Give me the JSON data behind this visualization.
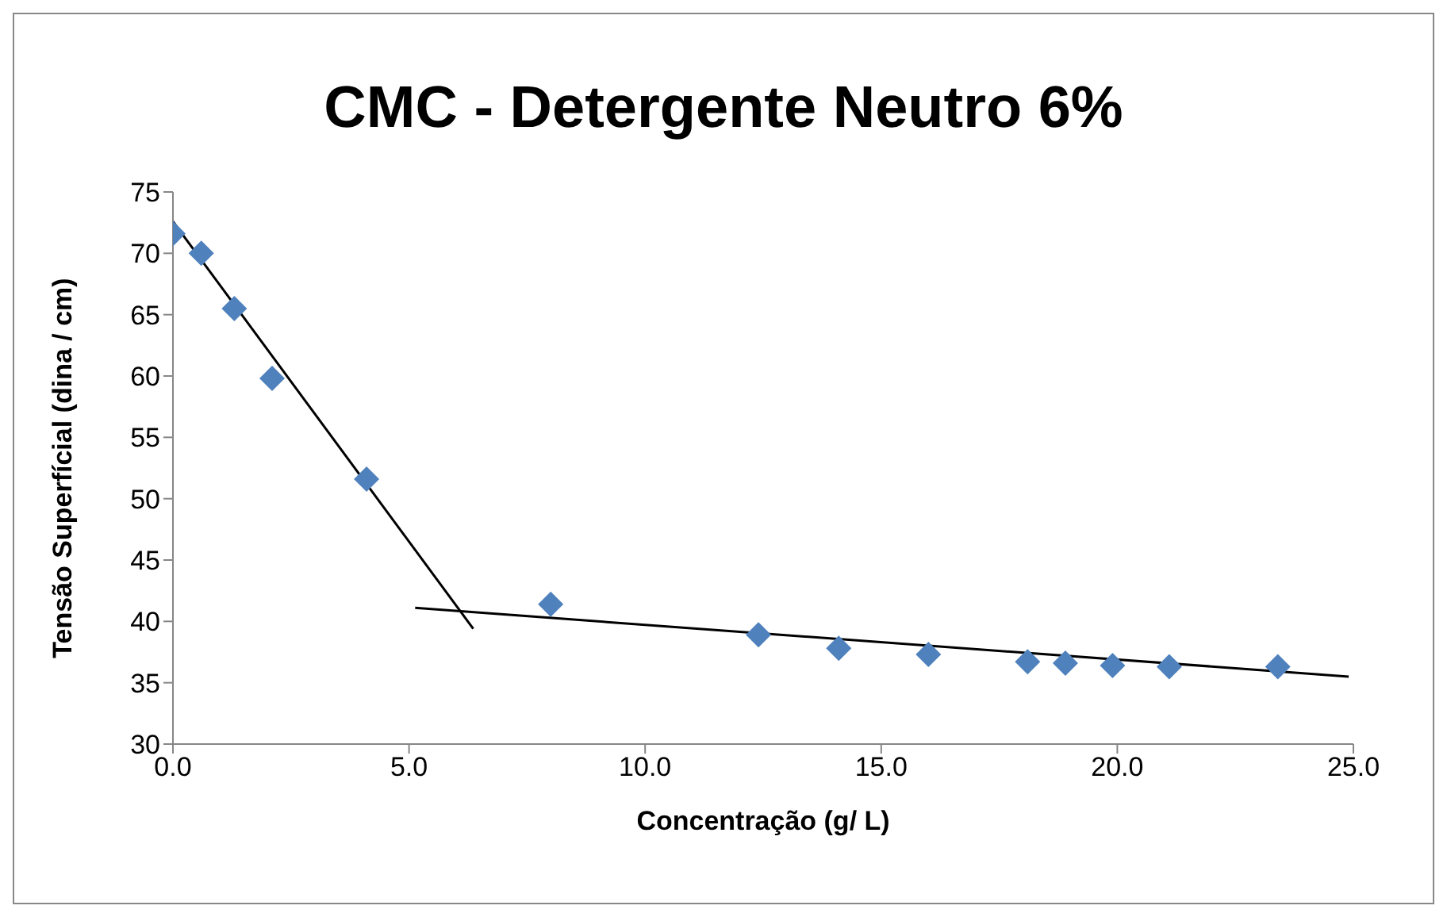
{
  "chart_data": {
    "type": "scatter",
    "title": "CMC - Detergente Neutro 6%",
    "xlabel": "Concentração (g/ L)",
    "ylabel": "Tensão Superfícial (dina / cm)",
    "xlim": [
      0,
      25
    ],
    "xticks": [
      {
        "value": 0,
        "label": "0.0"
      },
      {
        "value": 5,
        "label": "5.0"
      },
      {
        "value": 10,
        "label": "10.0"
      },
      {
        "value": 15,
        "label": "15.0"
      },
      {
        "value": 20,
        "label": "20.0"
      },
      {
        "value": 25,
        "label": "25.0"
      }
    ],
    "ylim": [
      30,
      75
    ],
    "yticks": [
      30,
      35,
      40,
      45,
      50,
      55,
      60,
      65,
      70,
      75
    ],
    "grid": false,
    "legend": false,
    "series": [
      {
        "marker": "diamond",
        "color": "#4f81bd",
        "x": [
          0,
          0.6,
          1.3,
          2.1,
          4.1,
          8.0,
          12.4,
          14.1,
          16.0,
          18.1,
          18.9,
          19.9,
          21.1,
          23.4
        ],
        "values": [
          71.6,
          70.0,
          65.5,
          59.8,
          51.6,
          41.4,
          38.9,
          37.8,
          37.3,
          36.7,
          36.6,
          36.4,
          36.3,
          36.3
        ]
      },
      {
        "type": "line",
        "marker": "none",
        "color": "#000000",
        "x": [
          0,
          6.36
        ],
        "values": [
          72.6,
          39.4
        ]
      },
      {
        "type": "line",
        "marker": "none",
        "color": "#000000",
        "x": [
          5.13,
          24.9
        ],
        "values": [
          41.1,
          35.5
        ]
      }
    ]
  }
}
